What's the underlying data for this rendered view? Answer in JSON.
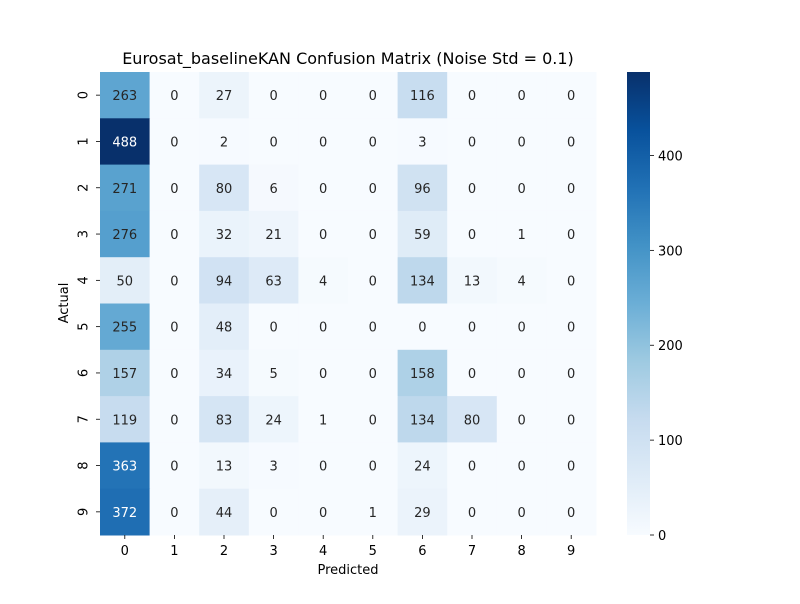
{
  "chart_data": {
    "type": "heatmap",
    "title": "Eurosat_baselineKAN Confusion Matrix (Noise Std = 0.1)",
    "xlabel": "Predicted",
    "ylabel": "Actual",
    "x_ticks": [
      "0",
      "1",
      "2",
      "3",
      "4",
      "5",
      "6",
      "7",
      "8",
      "9"
    ],
    "y_ticks": [
      "0",
      "1",
      "2",
      "3",
      "4",
      "5",
      "6",
      "7",
      "8",
      "9"
    ],
    "matrix": [
      [
        263,
        0,
        27,
        0,
        0,
        0,
        116,
        0,
        0,
        0
      ],
      [
        488,
        0,
        2,
        0,
        0,
        0,
        3,
        0,
        0,
        0
      ],
      [
        271,
        0,
        80,
        6,
        0,
        0,
        96,
        0,
        0,
        0
      ],
      [
        276,
        0,
        32,
        21,
        0,
        0,
        59,
        0,
        1,
        0
      ],
      [
        50,
        0,
        94,
        63,
        4,
        0,
        134,
        13,
        4,
        0
      ],
      [
        255,
        0,
        48,
        0,
        0,
        0,
        0,
        0,
        0,
        0
      ],
      [
        157,
        0,
        34,
        5,
        0,
        0,
        158,
        0,
        0,
        0
      ],
      [
        119,
        0,
        83,
        24,
        1,
        0,
        134,
        80,
        0,
        0
      ],
      [
        363,
        0,
        13,
        3,
        0,
        0,
        24,
        0,
        0,
        0
      ],
      [
        372,
        0,
        44,
        0,
        0,
        1,
        29,
        0,
        0,
        0
      ]
    ],
    "colormap": "Blues",
    "color_range": [
      0,
      488
    ],
    "colorbar_ticks": [
      0,
      100,
      200,
      300,
      400
    ],
    "annotation_color_light": "#ffffff",
    "annotation_color_dark": "#262626"
  }
}
